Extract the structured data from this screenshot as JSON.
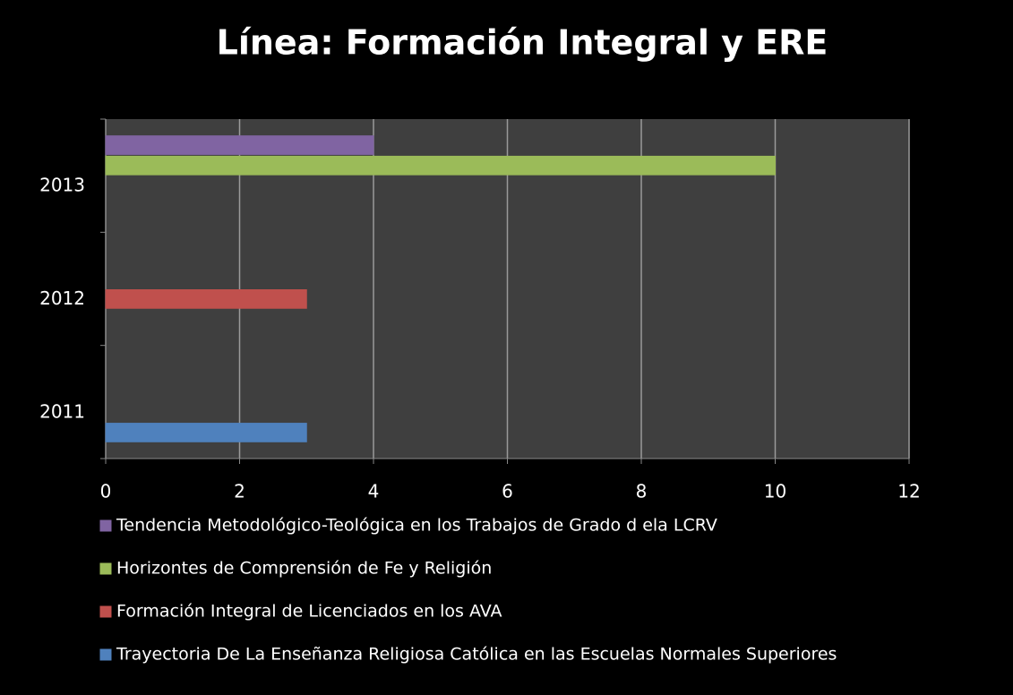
{
  "chart_data": {
    "type": "bar",
    "orientation": "horizontal",
    "title": "Línea: Formación Integral y ERE",
    "categories": [
      "2011",
      "2012",
      "2013"
    ],
    "series": [
      {
        "name": "Trayectoria De La Enseñanza Religiosa Católica en las Escuelas Normales Superiores",
        "color": "#4f81bd",
        "values": [
          3,
          null,
          null
        ]
      },
      {
        "name": "Formación Integral  de Licenciados en los AVA",
        "color": "#c0504d",
        "values": [
          null,
          3,
          null
        ]
      },
      {
        "name": "Horizontes de Comprensión de Fe y Religión",
        "color": "#9bbb59",
        "values": [
          null,
          null,
          10
        ]
      },
      {
        "name": "Tendencia Metodológico-Teológica en los Trabajos de Grado d ela LCRV",
        "color": "#8064a2",
        "values": [
          null,
          null,
          4
        ]
      }
    ],
    "xlim": [
      0,
      12
    ],
    "xticks": [
      0,
      2,
      4,
      6,
      8,
      10,
      12
    ],
    "grid": true,
    "legend": "bottom"
  }
}
